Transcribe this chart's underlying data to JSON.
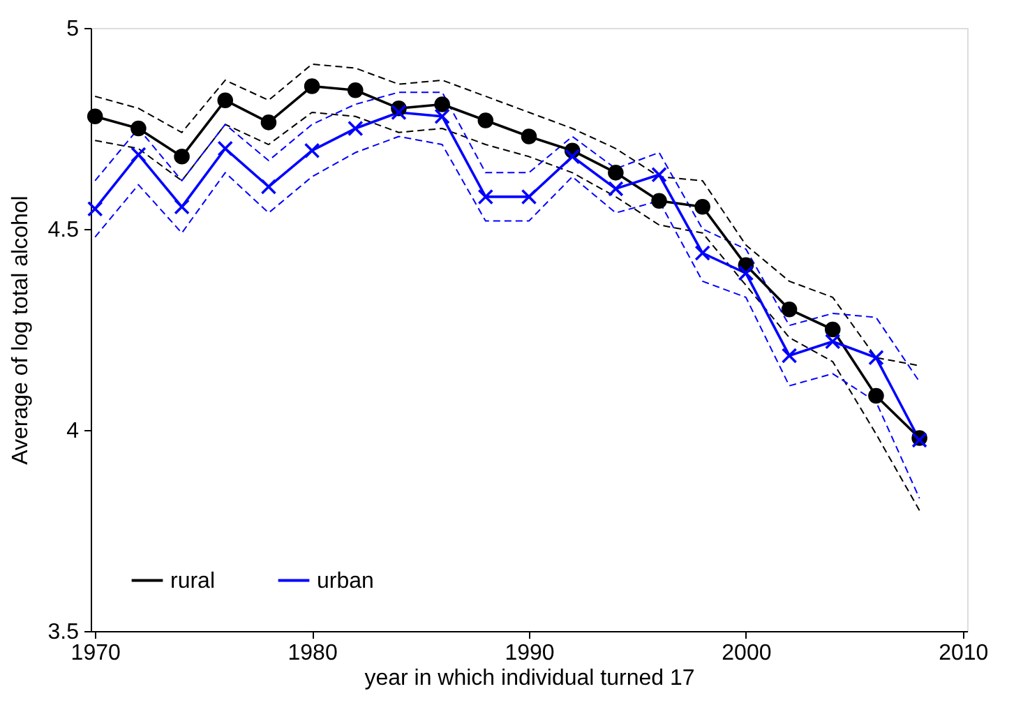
{
  "chart_data": {
    "type": "line",
    "xlabel": "year in which individual turned 17",
    "ylabel": "Average of log total alcohol",
    "x": [
      1970,
      1972,
      1974,
      1976,
      1978,
      1980,
      1982,
      1984,
      1986,
      1988,
      1990,
      1992,
      1994,
      1996,
      1998,
      2000,
      2002,
      2004,
      2006,
      2008
    ],
    "series": [
      {
        "name": "rural",
        "color": "#000000",
        "marker": "circle",
        "line_style": "solid",
        "values": [
          4.78,
          4.75,
          4.68,
          4.82,
          4.765,
          4.855,
          4.845,
          4.8,
          4.81,
          4.77,
          4.73,
          4.695,
          4.64,
          4.57,
          4.555,
          4.41,
          4.3,
          4.25,
          4.085,
          3.98
        ]
      },
      {
        "name": "urban",
        "color": "#0000ff",
        "marker": "cross",
        "line_style": "solid",
        "values": [
          4.55,
          4.685,
          4.555,
          4.7,
          4.605,
          4.695,
          4.75,
          4.79,
          4.78,
          4.58,
          4.58,
          4.68,
          4.6,
          4.635,
          4.44,
          4.39,
          4.185,
          4.22,
          4.18,
          3.975
        ]
      },
      {
        "color": "#000000",
        "line_style": "dashed",
        "values": [
          4.83,
          4.8,
          4.74,
          4.87,
          4.82,
          4.91,
          4.9,
          4.86,
          4.87,
          4.83,
          4.79,
          4.75,
          4.7,
          4.63,
          4.62,
          4.46,
          4.37,
          4.33,
          4.18,
          4.16
        ]
      },
      {
        "color": "#000000",
        "line_style": "dashed",
        "values": [
          4.72,
          4.7,
          4.62,
          4.76,
          4.71,
          4.79,
          4.78,
          4.74,
          4.75,
          4.71,
          4.68,
          4.64,
          4.58,
          4.51,
          4.49,
          4.36,
          4.23,
          4.17,
          3.99,
          3.8
        ]
      },
      {
        "color": "#0000ff",
        "line_style": "dashed",
        "values": [
          4.62,
          4.75,
          4.62,
          4.76,
          4.67,
          4.76,
          4.81,
          4.84,
          4.84,
          4.64,
          4.64,
          4.73,
          4.65,
          4.69,
          4.5,
          4.45,
          4.26,
          4.29,
          4.28,
          4.12
        ]
      },
      {
        "color": "#0000ff",
        "line_style": "dashed",
        "values": [
          4.48,
          4.61,
          4.49,
          4.64,
          4.54,
          4.63,
          4.69,
          4.73,
          4.71,
          4.52,
          4.52,
          4.63,
          4.54,
          4.57,
          4.37,
          4.33,
          4.11,
          4.14,
          4.07,
          3.83
        ]
      }
    ],
    "xlim": [
      1969.8,
      2010.2
    ],
    "xticks": [
      1970,
      1980,
      1990,
      2000,
      2010
    ],
    "ylim": [
      3.5,
      5.0
    ],
    "yticks": [
      3.5,
      4,
      4.5,
      5
    ],
    "legend": "bottom left",
    "grid": false
  }
}
